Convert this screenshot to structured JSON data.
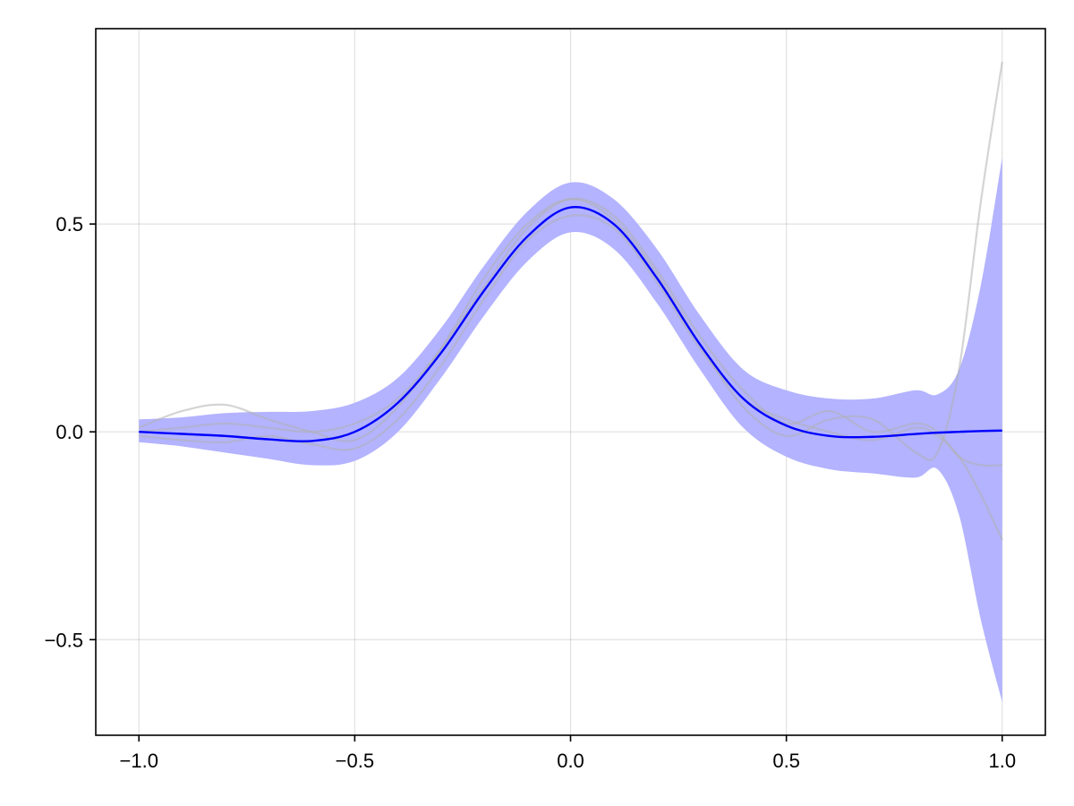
{
  "chart_data": {
    "type": "line",
    "title": "",
    "xlabel": "",
    "ylabel": "",
    "xlim": [
      -1.1,
      1.1
    ],
    "ylim": [
      -0.73,
      0.97
    ],
    "grid": true,
    "x_ticks": [
      -1.0,
      -0.5,
      0.0,
      0.5,
      1.0
    ],
    "x_tick_labels": [
      "−1.0",
      "−0.5",
      "0.0",
      "0.5",
      "1.0"
    ],
    "y_ticks": [
      -0.5,
      0.0,
      0.5
    ],
    "y_tick_labels": [
      "−0.5",
      "0.0",
      "0.5"
    ],
    "colors": {
      "mean": "#0000ff",
      "band": "#b3b3ff",
      "samples": "#b0b0b0"
    },
    "x": [
      -1.0,
      -0.9,
      -0.8,
      -0.7,
      -0.6,
      -0.5,
      -0.4,
      -0.3,
      -0.2,
      -0.1,
      0.0,
      0.1,
      0.2,
      0.3,
      0.4,
      0.5,
      0.6,
      0.7,
      0.8,
      0.85,
      0.9,
      0.95,
      1.0
    ],
    "series": [
      {
        "role": "mean",
        "values": [
          0.0,
          -0.005,
          -0.01,
          -0.018,
          -0.022,
          0.0,
          0.07,
          0.19,
          0.34,
          0.47,
          0.54,
          0.5,
          0.37,
          0.21,
          0.08,
          0.015,
          -0.01,
          -0.012,
          -0.005,
          -0.002,
          0.0,
          0.002,
          0.003
        ]
      },
      {
        "role": "band",
        "upper": [
          0.03,
          0.035,
          0.045,
          0.048,
          0.05,
          0.07,
          0.13,
          0.25,
          0.4,
          0.53,
          0.6,
          0.56,
          0.44,
          0.28,
          0.15,
          0.1,
          0.08,
          0.08,
          0.1,
          0.09,
          0.15,
          0.35,
          0.66
        ],
        "lower": [
          -0.025,
          -0.035,
          -0.05,
          -0.065,
          -0.08,
          -0.07,
          0.0,
          0.13,
          0.28,
          0.41,
          0.48,
          0.44,
          0.31,
          0.15,
          0.01,
          -0.06,
          -0.09,
          -0.1,
          -0.11,
          -0.09,
          -0.2,
          -0.45,
          -0.65
        ]
      },
      {
        "role": "sample",
        "values": [
          0.01,
          0.05,
          0.065,
          0.03,
          0.0,
          -0.02,
          0.06,
          0.2,
          0.37,
          0.5,
          0.56,
          0.51,
          0.38,
          0.21,
          0.06,
          -0.01,
          0.03,
          0.03,
          -0.05,
          -0.05,
          0.15,
          0.55,
          0.89
        ]
      },
      {
        "role": "sample",
        "values": [
          -0.01,
          -0.02,
          -0.025,
          -0.01,
          -0.03,
          -0.04,
          0.03,
          0.16,
          0.32,
          0.46,
          0.52,
          0.49,
          0.36,
          0.2,
          0.08,
          0.03,
          0.0,
          -0.02,
          0.01,
          -0.01,
          -0.06,
          -0.15,
          -0.26
        ]
      },
      {
        "role": "sample",
        "values": [
          0.0,
          0.01,
          0.02,
          0.01,
          0.0,
          0.02,
          0.08,
          0.2,
          0.35,
          0.49,
          0.56,
          0.52,
          0.39,
          0.23,
          0.1,
          0.02,
          0.05,
          0.0,
          0.02,
          0.0,
          -0.06,
          -0.08,
          -0.08
        ]
      }
    ]
  }
}
